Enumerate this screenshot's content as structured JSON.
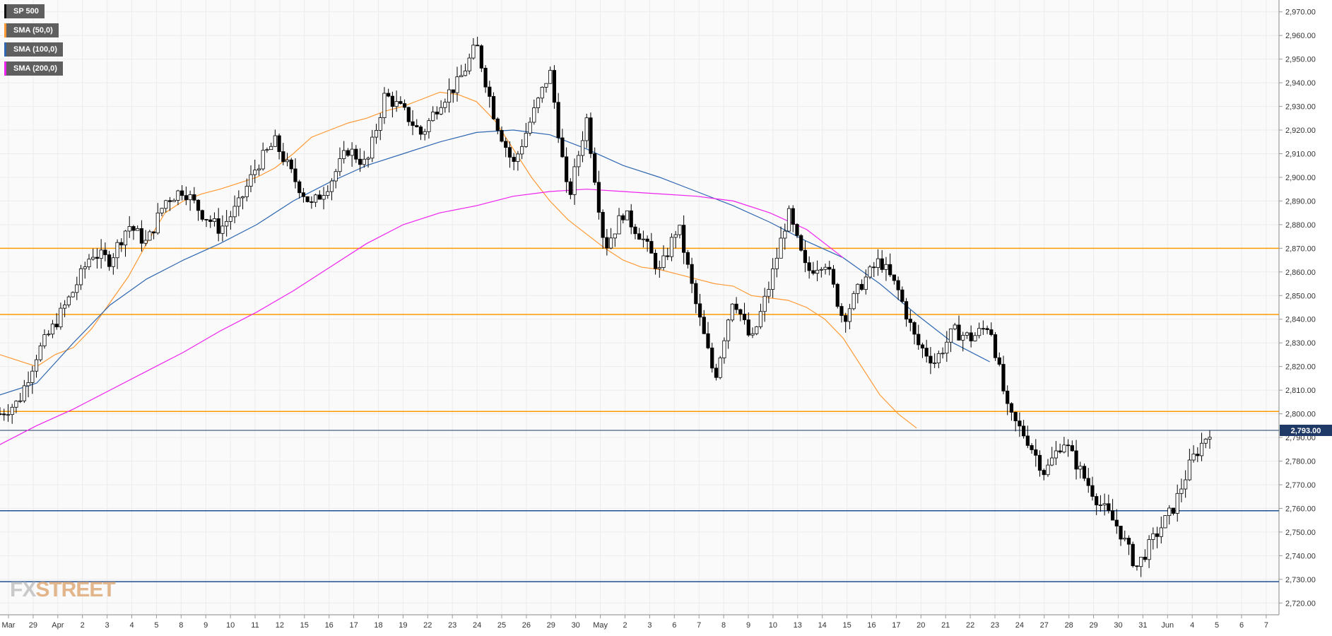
{
  "legend": [
    {
      "label": "SP 500",
      "color": "#111111"
    },
    {
      "label": "SMA (50,0)",
      "color": "#ff9933"
    },
    {
      "label": "SMA (100,0)",
      "color": "#2f67b1"
    },
    {
      "label": "SMA (200,0)",
      "color": "#ee22ee"
    }
  ],
  "brand": {
    "part1": "FX",
    "part2": "STREET"
  },
  "price_tag": "2,793.00",
  "colors": {
    "up": "#ffffff",
    "down": "#000000",
    "wick": "#000000",
    "sma50": "#ff9933",
    "sma100": "#2f67b1",
    "sma200": "#ee22ee",
    "support": "#1f4f91",
    "resistance": "#ff9900",
    "last": "#1f3a66"
  },
  "chart_data": {
    "type": "candlestick",
    "timeframe": "1h",
    "title": "",
    "ylim": [
      2715,
      2975
    ],
    "y_ticks": [
      2720,
      2730,
      2740,
      2750,
      2760,
      2770,
      2780,
      2790,
      2800,
      2810,
      2820,
      2830,
      2840,
      2850,
      2860,
      2870,
      2880,
      2890,
      2900,
      2910,
      2920,
      2930,
      2940,
      2950,
      2960,
      2970
    ],
    "x_ticks": [
      "Mar",
      "29",
      "Apr",
      "2",
      "3",
      "4",
      "5",
      "8",
      "9",
      "10",
      "11",
      "12",
      "15",
      "16",
      "17",
      "18",
      "19",
      "22",
      "23",
      "24",
      "25",
      "26",
      "29",
      "30",
      "May",
      "2",
      "3",
      "6",
      "7",
      "8",
      "9",
      "10",
      "13",
      "14",
      "15",
      "16",
      "17",
      "20",
      "21",
      "22",
      "23",
      "24",
      "27",
      "28",
      "29",
      "30",
      "31",
      "Jun",
      "4",
      "5",
      "6",
      "7"
    ],
    "last_price": 2793,
    "horizontal_levels": [
      {
        "value": 2870,
        "type": "resistance"
      },
      {
        "value": 2842,
        "type": "resistance"
      },
      {
        "value": 2801,
        "type": "resistance"
      },
      {
        "value": 2759,
        "type": "support"
      },
      {
        "value": 2729,
        "type": "support"
      }
    ],
    "price_path": [
      [
        0,
        2800
      ],
      [
        1,
        2805
      ],
      [
        2,
        2825
      ],
      [
        3,
        2838
      ],
      [
        4,
        2852
      ],
      [
        5,
        2868
      ],
      [
        6,
        2865
      ],
      [
        7,
        2880
      ],
      [
        8,
        2872
      ],
      [
        9,
        2890
      ],
      [
        10,
        2895
      ],
      [
        11,
        2885
      ],
      [
        12,
        2878
      ],
      [
        13,
        2888
      ],
      [
        14,
        2905
      ],
      [
        15,
        2915
      ],
      [
        16,
        2900
      ],
      [
        17,
        2888
      ],
      [
        18,
        2898
      ],
      [
        19,
        2912
      ],
      [
        20,
        2905
      ],
      [
        21,
        2935
      ],
      [
        22,
        2928
      ],
      [
        23,
        2918
      ],
      [
        24,
        2932
      ],
      [
        25,
        2940
      ],
      [
        26,
        2956
      ],
      [
        27,
        2925
      ],
      [
        28,
        2905
      ],
      [
        29,
        2925
      ],
      [
        30,
        2945
      ],
      [
        31,
        2890
      ],
      [
        32,
        2925
      ],
      [
        33,
        2870
      ],
      [
        34,
        2885
      ],
      [
        35,
        2875
      ],
      [
        36,
        2860
      ],
      [
        37,
        2880
      ],
      [
        38,
        2845
      ],
      [
        39,
        2815
      ],
      [
        40,
        2850
      ],
      [
        41,
        2830
      ],
      [
        42,
        2855
      ],
      [
        43,
        2885
      ],
      [
        44,
        2860
      ],
      [
        45,
        2865
      ],
      [
        46,
        2840
      ],
      [
        47,
        2855
      ],
      [
        48,
        2865
      ],
      [
        49,
        2852
      ],
      [
        50,
        2830
      ],
      [
        51,
        2822
      ],
      [
        52,
        2835
      ],
      [
        53,
        2832
      ],
      [
        54,
        2838
      ],
      [
        55,
        2800
      ],
      [
        56,
        2790
      ],
      [
        57,
        2775
      ],
      [
        58,
        2789
      ],
      [
        59,
        2775
      ],
      [
        60,
        2762
      ],
      [
        61,
        2752
      ],
      [
        62,
        2735
      ],
      [
        63,
        2748
      ],
      [
        64,
        2760
      ],
      [
        65,
        2780
      ],
      [
        66,
        2793
      ]
    ],
    "series": [
      {
        "name": "SMA (50,0)",
        "values": [
          [
            0,
            2825
          ],
          [
            2,
            2820
          ],
          [
            3,
            2825
          ],
          [
            4,
            2828
          ],
          [
            5,
            2836
          ],
          [
            7,
            2858
          ],
          [
            8,
            2872
          ],
          [
            9,
            2885
          ],
          [
            10,
            2890
          ],
          [
            11,
            2893
          ],
          [
            12,
            2895
          ],
          [
            14,
            2900
          ],
          [
            15,
            2904
          ],
          [
            16,
            2910
          ],
          [
            17,
            2917
          ],
          [
            18,
            2920
          ],
          [
            19,
            2923
          ],
          [
            20,
            2925
          ],
          [
            21,
            2928
          ],
          [
            22,
            2930
          ],
          [
            23,
            2933
          ],
          [
            24,
            2936
          ],
          [
            25,
            2935
          ],
          [
            26,
            2932
          ],
          [
            27,
            2924
          ],
          [
            28,
            2912
          ],
          [
            29,
            2900
          ],
          [
            30,
            2890
          ],
          [
            31,
            2882
          ],
          [
            32,
            2876
          ],
          [
            33,
            2870
          ],
          [
            34,
            2865
          ],
          [
            35,
            2862
          ],
          [
            36,
            2861
          ],
          [
            37,
            2859
          ],
          [
            38,
            2857
          ],
          [
            39,
            2855
          ],
          [
            40,
            2854
          ],
          [
            41,
            2850
          ],
          [
            42,
            2849
          ],
          [
            43,
            2848
          ],
          [
            44,
            2845
          ],
          [
            45,
            2840
          ],
          [
            46,
            2832
          ],
          [
            47,
            2820
          ],
          [
            48,
            2808
          ],
          [
            49,
            2800
          ],
          [
            50,
            2794
          ]
        ]
      },
      {
        "name": "SMA (100,0)",
        "values": [
          [
            0,
            2808
          ],
          [
            2,
            2813
          ],
          [
            4,
            2830
          ],
          [
            6,
            2846
          ],
          [
            8,
            2857
          ],
          [
            10,
            2865
          ],
          [
            12,
            2872
          ],
          [
            14,
            2880
          ],
          [
            16,
            2890
          ],
          [
            18,
            2898
          ],
          [
            20,
            2905
          ],
          [
            22,
            2910
          ],
          [
            24,
            2915
          ],
          [
            26,
            2919
          ],
          [
            28,
            2920
          ],
          [
            30,
            2918
          ],
          [
            32,
            2912
          ],
          [
            34,
            2905
          ],
          [
            36,
            2900
          ],
          [
            38,
            2894
          ],
          [
            40,
            2888
          ],
          [
            42,
            2881
          ],
          [
            44,
            2873
          ],
          [
            46,
            2866
          ],
          [
            48,
            2855
          ],
          [
            50,
            2842
          ],
          [
            52,
            2830
          ],
          [
            54,
            2822
          ]
        ]
      },
      {
        "name": "SMA (200,0)",
        "values": [
          [
            0,
            2787
          ],
          [
            2,
            2795
          ],
          [
            4,
            2802
          ],
          [
            6,
            2810
          ],
          [
            8,
            2818
          ],
          [
            10,
            2826
          ],
          [
            12,
            2835
          ],
          [
            14,
            2843
          ],
          [
            16,
            2852
          ],
          [
            18,
            2862
          ],
          [
            20,
            2872
          ],
          [
            22,
            2880
          ],
          [
            24,
            2885
          ],
          [
            26,
            2888
          ],
          [
            28,
            2892
          ],
          [
            30,
            2894
          ],
          [
            32,
            2895
          ],
          [
            34,
            2894
          ],
          [
            36,
            2893
          ],
          [
            38,
            2892
          ],
          [
            40,
            2890
          ],
          [
            42,
            2885
          ],
          [
            44,
            2878
          ],
          [
            46,
            2866
          ]
        ]
      }
    ]
  }
}
